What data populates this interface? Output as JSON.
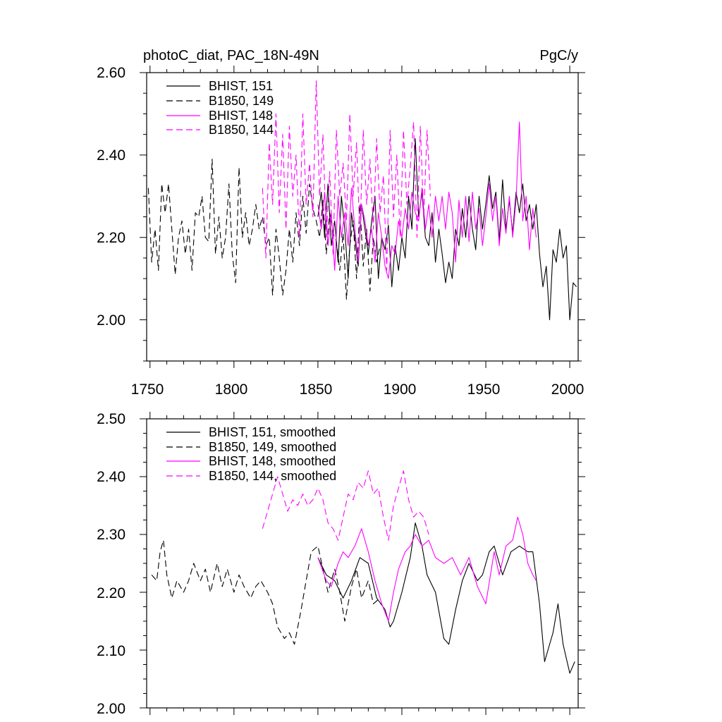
{
  "chart_data": [
    {
      "type": "line",
      "title": "photoC_diat, PAC_18N-49N",
      "units": "PgC/y",
      "xlim": [
        1748,
        2005
      ],
      "ylim": [
        1.9,
        2.6
      ],
      "xticks": [
        "1750",
        "1800",
        "1850",
        "1900",
        "1950",
        "2000"
      ],
      "yticks": [
        "2.00",
        "2.20",
        "2.40",
        "2.60"
      ],
      "legend": [
        "BHIST, 151",
        "B1850, 149",
        "BHIST, 148",
        "B1850, 144"
      ],
      "series": [
        {
          "name": "BHIST, 151",
          "color": "#000000",
          "dashed": false,
          "x": [
            1850,
            1852,
            1854,
            1856,
            1858,
            1860,
            1862,
            1864,
            1866,
            1868,
            1870,
            1872,
            1874,
            1876,
            1878,
            1880,
            1882,
            1884,
            1886,
            1888,
            1890,
            1892,
            1894,
            1896,
            1898,
            1900,
            1902,
            1904,
            1906,
            1908,
            1910,
            1912,
            1914,
            1916,
            1918,
            1920,
            1922,
            1924,
            1926,
            1928,
            1930,
            1932,
            1934,
            1936,
            1938,
            1940,
            1942,
            1944,
            1946,
            1948,
            1950,
            1952,
            1954,
            1956,
            1958,
            1960,
            1962,
            1964,
            1966,
            1968,
            1970,
            1972,
            1974,
            1976,
            1978,
            1980,
            1982,
            1984,
            1986,
            1988,
            1990,
            1992,
            1994,
            1996,
            1998,
            2000,
            2002,
            2004
          ],
          "y": [
            2.25,
            2.31,
            2.2,
            2.33,
            2.18,
            2.24,
            2.14,
            2.3,
            2.22,
            2.1,
            2.26,
            2.2,
            2.13,
            2.28,
            2.22,
            2.16,
            2.24,
            2.3,
            2.1,
            2.2,
            2.17,
            2.23,
            2.08,
            2.18,
            2.12,
            2.2,
            2.15,
            2.3,
            2.22,
            2.44,
            2.25,
            2.31,
            2.2,
            2.18,
            2.26,
            2.14,
            2.22,
            2.16,
            2.09,
            2.14,
            2.1,
            2.22,
            2.18,
            2.27,
            2.2,
            2.3,
            2.22,
            2.17,
            2.3,
            2.22,
            2.28,
            2.35,
            2.27,
            2.31,
            2.19,
            2.34,
            2.22,
            2.29,
            2.21,
            2.31,
            2.26,
            2.33,
            2.24,
            2.28,
            2.22,
            2.28,
            2.16,
            2.08,
            2.13,
            2.0,
            2.17,
            2.14,
            2.22,
            2.15,
            2.18,
            2.0,
            2.09,
            2.08
          ]
        },
        {
          "name": "B1850, 149",
          "color": "#000000",
          "dashed": true,
          "x": [
            1749,
            1751,
            1753,
            1755,
            1757,
            1759,
            1761,
            1763,
            1765,
            1767,
            1769,
            1771,
            1773,
            1775,
            1777,
            1779,
            1781,
            1783,
            1785,
            1787,
            1789,
            1791,
            1793,
            1795,
            1797,
            1799,
            1801,
            1803,
            1805,
            1807,
            1809,
            1811,
            1813,
            1815,
            1817,
            1819,
            1821,
            1823,
            1825,
            1827,
            1829,
            1831,
            1833,
            1835,
            1837,
            1839,
            1841,
            1843,
            1845,
            1847,
            1849,
            1851,
            1853,
            1855,
            1857,
            1859,
            1861,
            1863,
            1865,
            1867,
            1869,
            1871,
            1873,
            1875,
            1877,
            1879,
            1881,
            1883,
            1885,
            1887
          ],
          "y": [
            2.32,
            2.14,
            2.22,
            2.12,
            2.33,
            2.26,
            2.33,
            2.22,
            2.11,
            2.2,
            2.24,
            2.16,
            2.22,
            2.12,
            2.26,
            2.25,
            2.3,
            2.2,
            2.19,
            2.39,
            2.16,
            2.25,
            2.15,
            2.2,
            2.33,
            2.16,
            2.09,
            2.37,
            2.2,
            2.26,
            2.18,
            2.22,
            2.28,
            2.22,
            2.25,
            2.18,
            2.2,
            2.06,
            2.22,
            2.15,
            2.06,
            2.12,
            2.22,
            2.14,
            2.26,
            2.18,
            2.3,
            2.21,
            2.33,
            2.27,
            2.24,
            2.2,
            2.29,
            2.16,
            2.26,
            2.21,
            2.19,
            2.12,
            2.21,
            2.05,
            2.18,
            2.24,
            2.1,
            2.28,
            2.13,
            2.22,
            2.07,
            2.2,
            2.14,
            2.18
          ]
        },
        {
          "name": "BHIST, 148",
          "color": "#ff00ff",
          "dashed": false,
          "x": [
            1850,
            1852,
            1854,
            1856,
            1858,
            1860,
            1862,
            1864,
            1866,
            1868,
            1870,
            1872,
            1874,
            1876,
            1878,
            1880,
            1882,
            1884,
            1886,
            1888,
            1890,
            1892,
            1894,
            1896,
            1898,
            1900,
            1902,
            1904,
            1906,
            1908,
            1910,
            1912,
            1914,
            1916,
            1918,
            1920,
            1922,
            1924,
            1926,
            1928,
            1930,
            1932,
            1934,
            1936,
            1938,
            1940,
            1942,
            1944,
            1946,
            1948,
            1950,
            1952,
            1954,
            1956,
            1958,
            1960,
            1962,
            1964,
            1966,
            1968,
            1970,
            1972,
            1974,
            1976,
            1978,
            1980
          ],
          "y": [
            2.28,
            2.22,
            2.31,
            2.18,
            2.26,
            2.12,
            2.3,
            2.2,
            2.26,
            2.18,
            2.32,
            2.22,
            2.14,
            2.28,
            2.24,
            2.18,
            2.22,
            2.14,
            2.26,
            2.2,
            2.13,
            2.1,
            2.18,
            2.16,
            2.24,
            2.2,
            2.27,
            2.22,
            2.31,
            2.26,
            2.24,
            2.32,
            2.22,
            2.28,
            2.2,
            2.3,
            2.24,
            2.3,
            2.22,
            2.31,
            2.26,
            2.14,
            2.29,
            2.2,
            2.3,
            2.19,
            2.31,
            2.22,
            2.27,
            2.18,
            2.25,
            2.33,
            2.24,
            2.3,
            2.18,
            2.27,
            2.21,
            2.3,
            2.2,
            2.29,
            2.48,
            2.24,
            2.3,
            2.17,
            2.27,
            2.2
          ]
        },
        {
          "name": "B1850, 144",
          "color": "#ff00ff",
          "dashed": true,
          "x": [
            1817,
            1819,
            1821,
            1823,
            1825,
            1827,
            1829,
            1831,
            1833,
            1835,
            1837,
            1839,
            1841,
            1843,
            1845,
            1847,
            1849,
            1851,
            1853,
            1855,
            1857,
            1859,
            1861,
            1863,
            1865,
            1867,
            1869,
            1871,
            1873,
            1875,
            1877,
            1879,
            1881,
            1883,
            1885,
            1887,
            1889,
            1891,
            1893,
            1895,
            1897,
            1899,
            1901,
            1903,
            1905,
            1907,
            1909,
            1911,
            1913,
            1915,
            1917
          ],
          "y": [
            2.32,
            2.15,
            2.43,
            2.28,
            2.5,
            2.26,
            2.45,
            2.22,
            2.47,
            2.3,
            2.4,
            2.2,
            2.5,
            2.28,
            2.38,
            2.25,
            2.58,
            2.3,
            2.45,
            2.2,
            2.36,
            2.16,
            2.46,
            2.3,
            2.38,
            2.24,
            2.5,
            2.3,
            2.43,
            2.2,
            2.46,
            2.28,
            2.39,
            2.22,
            2.44,
            2.26,
            2.35,
            2.12,
            2.46,
            2.25,
            2.4,
            2.2,
            2.46,
            2.28,
            2.37,
            2.48,
            2.2,
            2.47,
            2.25,
            2.46,
            2.3
          ]
        }
      ]
    },
    {
      "type": "line",
      "title": "",
      "xlim": [
        1748,
        2005
      ],
      "ylim": [
        2.0,
        2.5
      ],
      "yticks": [
        "2.00",
        "2.10",
        "2.20",
        "2.30",
        "2.40",
        "2.50"
      ],
      "legend": [
        "BHIST, 151, smoothed",
        "B1850, 149, smoothed",
        "BHIST, 148, smoothed",
        "B1850, 144, smoothed"
      ],
      "series": [
        {
          "name": "BHIST, 151, smoothed",
          "color": "#000000",
          "dashed": false,
          "x": [
            1850,
            1855,
            1860,
            1865,
            1870,
            1875,
            1880,
            1885,
            1890,
            1893,
            1895,
            1900,
            1905,
            1908,
            1912,
            1915,
            1920,
            1925,
            1928,
            1932,
            1936,
            1940,
            1945,
            1948,
            1952,
            1955,
            1960,
            1965,
            1970,
            1975,
            1978,
            1982,
            1985,
            1990,
            1993,
            1996,
            2000,
            2003
          ],
          "y": [
            2.26,
            2.23,
            2.22,
            2.19,
            2.22,
            2.26,
            2.25,
            2.19,
            2.17,
            2.14,
            2.15,
            2.2,
            2.26,
            2.32,
            2.28,
            2.23,
            2.2,
            2.12,
            2.11,
            2.17,
            2.22,
            2.25,
            2.22,
            2.23,
            2.27,
            2.28,
            2.23,
            2.27,
            2.28,
            2.27,
            2.27,
            2.18,
            2.08,
            2.13,
            2.18,
            2.11,
            2.06,
            2.08
          ]
        },
        {
          "name": "B1850, 149, smoothed",
          "color": "#000000",
          "dashed": true,
          "x": [
            1751,
            1754,
            1756,
            1758,
            1760,
            1763,
            1766,
            1770,
            1773,
            1776,
            1780,
            1783,
            1786,
            1790,
            1793,
            1796,
            1800,
            1803,
            1806,
            1810,
            1813,
            1816,
            1820,
            1823,
            1826,
            1830,
            1833,
            1836,
            1840,
            1843,
            1846,
            1850,
            1853,
            1856,
            1860,
            1863,
            1866,
            1870,
            1873,
            1876,
            1880,
            1883,
            1887
          ],
          "y": [
            2.23,
            2.22,
            2.27,
            2.29,
            2.23,
            2.19,
            2.22,
            2.2,
            2.22,
            2.25,
            2.22,
            2.24,
            2.2,
            2.25,
            2.21,
            2.24,
            2.2,
            2.23,
            2.21,
            2.19,
            2.21,
            2.22,
            2.2,
            2.18,
            2.14,
            2.12,
            2.13,
            2.11,
            2.17,
            2.22,
            2.27,
            2.28,
            2.24,
            2.2,
            2.24,
            2.2,
            2.15,
            2.21,
            2.24,
            2.19,
            2.22,
            2.18,
            2.19
          ]
        },
        {
          "name": "BHIST, 148, smoothed",
          "color": "#ff00ff",
          "dashed": false,
          "x": [
            1850,
            1855,
            1858,
            1862,
            1865,
            1868,
            1872,
            1876,
            1880,
            1884,
            1888,
            1892,
            1895,
            1898,
            1902,
            1905,
            1908,
            1912,
            1916,
            1920,
            1925,
            1930,
            1935,
            1940,
            1945,
            1950,
            1955,
            1958,
            1962,
            1966,
            1969,
            1972,
            1975,
            1978,
            1980
          ],
          "y": [
            2.26,
            2.22,
            2.21,
            2.25,
            2.27,
            2.26,
            2.28,
            2.31,
            2.27,
            2.22,
            2.18,
            2.15,
            2.2,
            2.24,
            2.27,
            2.28,
            2.3,
            2.28,
            2.29,
            2.26,
            2.25,
            2.26,
            2.23,
            2.26,
            2.21,
            2.18,
            2.27,
            2.23,
            2.28,
            2.29,
            2.33,
            2.3,
            2.25,
            2.23,
            2.22
          ]
        },
        {
          "name": "B1850, 144, smoothed",
          "color": "#ff00ff",
          "dashed": true,
          "x": [
            1817,
            1820,
            1823,
            1826,
            1829,
            1832,
            1835,
            1838,
            1841,
            1844,
            1847,
            1850,
            1853,
            1856,
            1859,
            1862,
            1865,
            1868,
            1871,
            1874,
            1877,
            1880,
            1883,
            1886,
            1889,
            1892,
            1895,
            1898,
            1901,
            1904,
            1907,
            1910,
            1913,
            1916
          ],
          "y": [
            2.31,
            2.34,
            2.37,
            2.4,
            2.37,
            2.34,
            2.36,
            2.35,
            2.37,
            2.35,
            2.36,
            2.38,
            2.36,
            2.32,
            2.31,
            2.29,
            2.33,
            2.37,
            2.36,
            2.39,
            2.38,
            2.41,
            2.37,
            2.38,
            2.33,
            2.29,
            2.35,
            2.38,
            2.41,
            2.36,
            2.33,
            2.34,
            2.33,
            2.3
          ]
        }
      ]
    }
  ]
}
